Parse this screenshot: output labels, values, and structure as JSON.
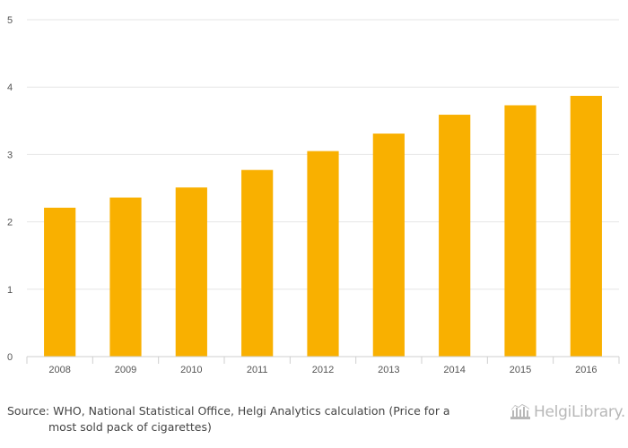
{
  "chart_data": {
    "type": "bar",
    "categories": [
      "2008",
      "2009",
      "2010",
      "2011",
      "2012",
      "2013",
      "2014",
      "2015",
      "2016"
    ],
    "values": [
      2.21,
      2.36,
      2.51,
      2.77,
      3.05,
      3.31,
      3.59,
      3.73,
      3.87
    ],
    "ylim": [
      0,
      5
    ],
    "yticks": [
      "0",
      "1",
      "2",
      "3",
      "4",
      "5"
    ],
    "grid": true,
    "bar_color": "#f9b000",
    "grid_color": "#e6e6e6",
    "axis_color": "#cfcfcf"
  },
  "source": {
    "line1": "Source: WHO, National Statistical Office, Helgi Analytics calculation (Price for a",
    "line2": "most sold pack of cigarettes)"
  },
  "logo": {
    "text": "HelgiLibrary.",
    "icon": "helgi-library-logo-icon",
    "color": "#b8b8b8"
  }
}
